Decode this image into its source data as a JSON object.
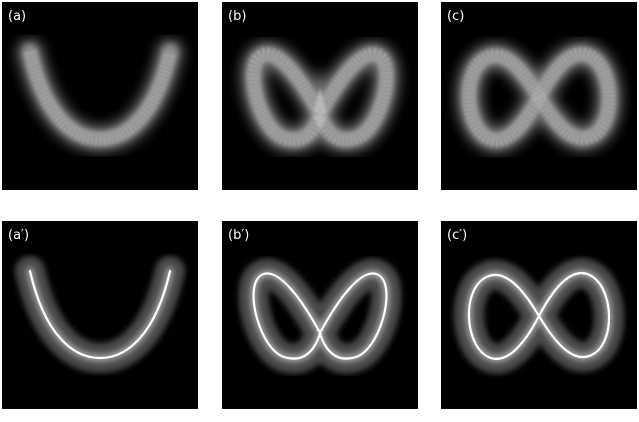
{
  "panels": [
    {
      "label": "(a)"
    },
    {
      "label": "(b)"
    },
    {
      "label": "(c)"
    },
    {
      "label": "(a′)"
    },
    {
      "label": "(b′)"
    },
    {
      "label": "(c′)"
    }
  ]
}
